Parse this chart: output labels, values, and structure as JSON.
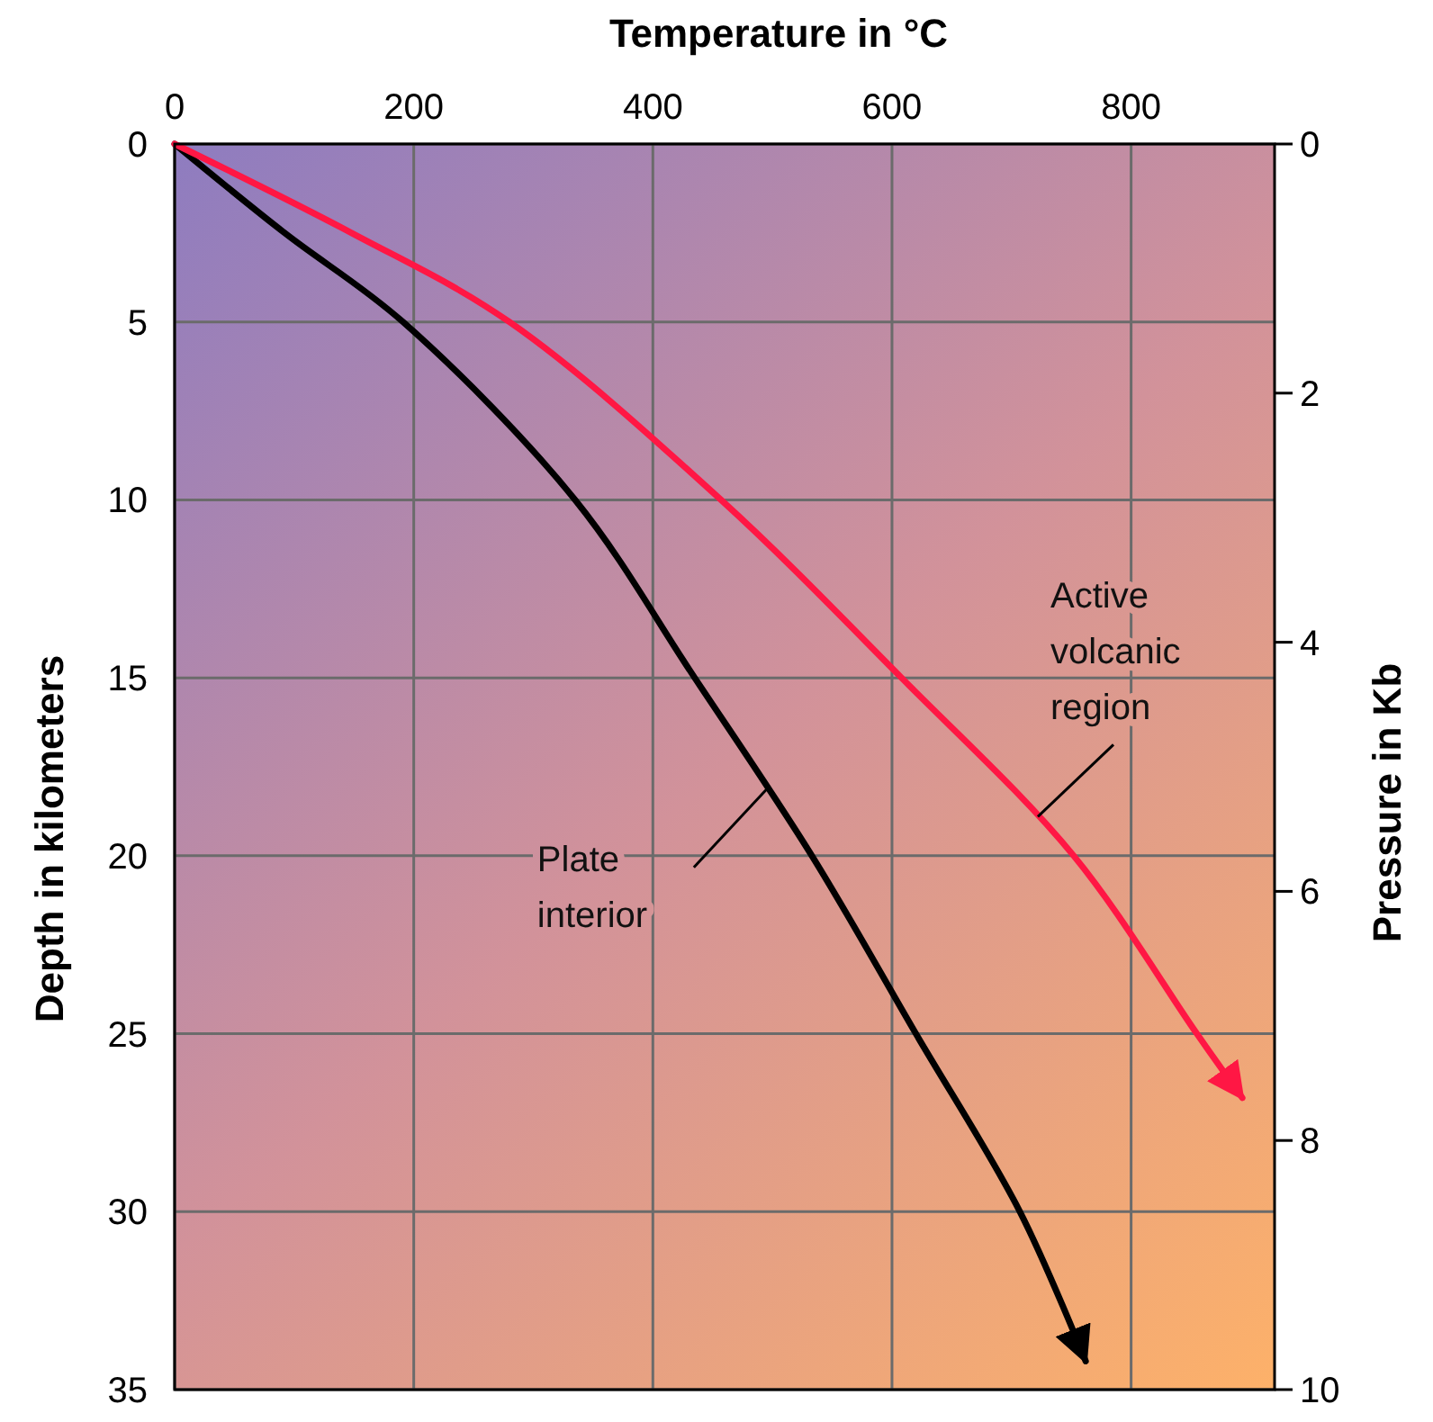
{
  "chart_data": {
    "type": "line",
    "xlabel": "Temperature in °C",
    "ylabel": "Depth in kilometers",
    "y2label": "Pressure in Kb",
    "xlim": [
      0,
      920
    ],
    "xticks": [
      0,
      200,
      400,
      600,
      800
    ],
    "ylim": [
      35,
      0
    ],
    "yticks": [
      0,
      5,
      10,
      15,
      20,
      25,
      30,
      35
    ],
    "y2lim": [
      10,
      0
    ],
    "y2ticks": [
      0,
      2,
      4,
      6,
      8,
      10
    ],
    "grid": true,
    "marker": "none",
    "line_style": "solid",
    "series": [
      {
        "color": "#000000",
        "x": [
          0,
          92,
          191,
          335,
          435,
          533,
          620,
          707,
          762
        ],
        "values": [
          0,
          2.5,
          5,
          10,
          15,
          20,
          25,
          30,
          34.2
        ]
      },
      {
        "color": "#ff1744",
        "x": [
          0,
          148,
          280,
          457,
          608,
          752,
          855,
          893
        ],
        "values": [
          0,
          2.5,
          5,
          10,
          15,
          20,
          25,
          26.8
        ]
      }
    ],
    "annotations": [
      {
        "text": "Plate interior",
        "x": 496,
        "y": 18.1
      },
      {
        "text": "Active volcanic region",
        "x": 722,
        "y": 18.9
      }
    ]
  }
}
